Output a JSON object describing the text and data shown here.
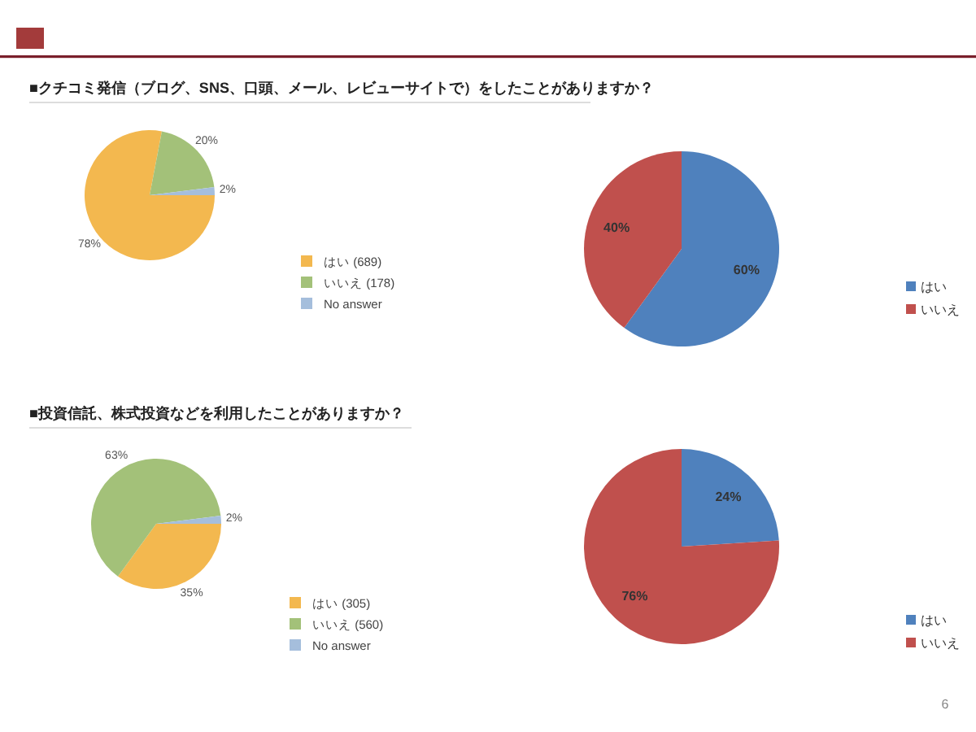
{
  "chart_data": [
    {
      "type": "pie",
      "title": "■クチコミ発信（ブログ、SNS、口頭、メール、レビューサイトで）をしたことがありますか？",
      "categories": [
        "はい (689)",
        "いいえ (178)",
        "No answer"
      ],
      "values": [
        78,
        20,
        2
      ],
      "colors": [
        "#f3b84f",
        "#a3c179",
        "#a5bedc"
      ],
      "value_labels": [
        "78%",
        "20%",
        "2%"
      ],
      "legend": "bottom right"
    },
    {
      "type": "pie",
      "categories": [
        "はい",
        "いいえ"
      ],
      "values": [
        60,
        40
      ],
      "colors": [
        "#4f81bd",
        "#c0504d"
      ],
      "value_labels": [
        "60%",
        "40%"
      ],
      "legend": "right"
    },
    {
      "type": "pie",
      "title": "■投資信託、株式投資などを利用したことがありますか？",
      "categories": [
        "はい (305)",
        "いいえ (560)",
        "No answer"
      ],
      "values": [
        35,
        63,
        2
      ],
      "colors": [
        "#f3b84f",
        "#a3c179",
        "#a5bedc"
      ],
      "value_labels": [
        "35%",
        "63%",
        "2%"
      ],
      "legend": "bottom right"
    },
    {
      "type": "pie",
      "categories": [
        "はい",
        "いいえ"
      ],
      "values": [
        24,
        76
      ],
      "colors": [
        "#4f81bd",
        "#c0504d"
      ],
      "value_labels": [
        "24%",
        "76%"
      ],
      "legend": "bottom right",
      "annotations": [
        "6"
      ]
    }
  ]
}
